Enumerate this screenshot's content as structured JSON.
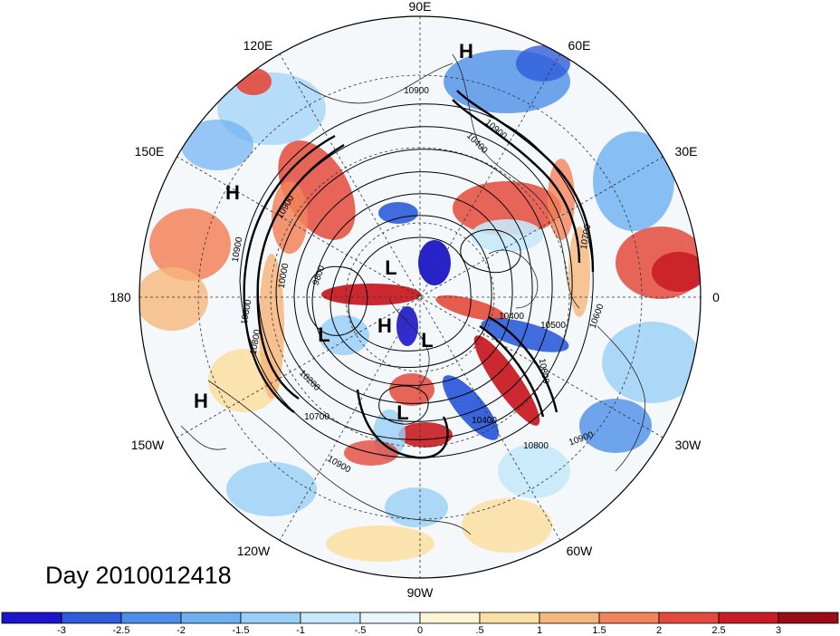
{
  "title": "Day 2010012418",
  "longitude_labels": [
    {
      "text": "90E",
      "angle": 90
    },
    {
      "text": "60E",
      "angle": 60
    },
    {
      "text": "30E",
      "angle": 30
    },
    {
      "text": "0",
      "angle": 0
    },
    {
      "text": "30W",
      "angle": -30
    },
    {
      "text": "60W",
      "angle": -60
    },
    {
      "text": "90W",
      "angle": -90
    },
    {
      "text": "120W",
      "angle": -120
    },
    {
      "text": "150W",
      "angle": -150
    },
    {
      "text": "180",
      "angle": 180
    },
    {
      "text": "150E",
      "angle": 150
    },
    {
      "text": "120E",
      "angle": 120
    }
  ],
  "pressure_centers": [
    {
      "text": "H",
      "kind": "high"
    },
    {
      "text": "H",
      "kind": "high"
    },
    {
      "text": "L",
      "kind": "low"
    },
    {
      "text": "L",
      "kind": "low"
    },
    {
      "text": "H",
      "kind": "high"
    },
    {
      "text": "L",
      "kind": "low"
    },
    {
      "text": "H",
      "kind": "high"
    },
    {
      "text": "L",
      "kind": "low"
    }
  ],
  "contour_labels": [
    "10900",
    "10900",
    "10900",
    "10800",
    "10700",
    "10600",
    "10500",
    "10400",
    "10400",
    "10800",
    "10800",
    "10900",
    "10000",
    "9800",
    "10200",
    "10700",
    "10900",
    "10900",
    "10800",
    "10400"
  ],
  "colorbar": {
    "ticks": [
      "-3",
      "-2.5",
      "-2",
      "-1.5",
      "-1",
      "-.5",
      "0",
      ".5",
      "1",
      "1.5",
      "2",
      "2.5",
      "3"
    ],
    "colors": [
      "#1c16c8",
      "#2e5cd9",
      "#4c8ee8",
      "#6cb0f2",
      "#9ad0f8",
      "#c6e9fb",
      "#eaf7fc",
      "#fdf6d6",
      "#fbe0a6",
      "#f7b67c",
      "#f2835a",
      "#e44a3c",
      "#c81d24",
      "#9a0c18"
    ]
  },
  "colors": {
    "background": "#ffffff",
    "contour": "#000000"
  }
}
